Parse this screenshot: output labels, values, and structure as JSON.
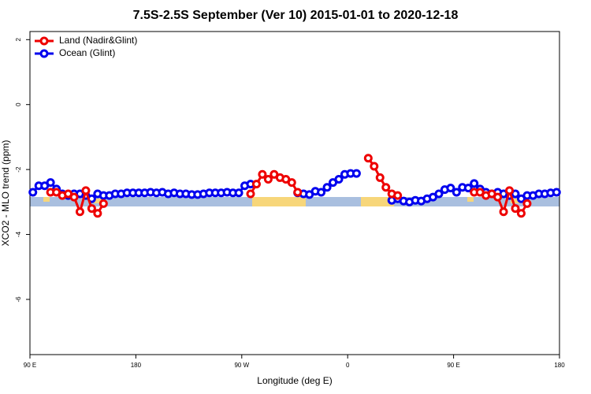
{
  "chart_data": {
    "type": "line",
    "title": "7.5S-2.5S September (Ver 10)   2015-01-01 to 2020-12-18",
    "x_label": "Longitude (deg E)",
    "y_label": "XCO2 - MLO trend (ppm)",
    "xlim": [
      90,
      540
    ],
    "ylim": [
      -7.7,
      2.25
    ],
    "xticks": [
      {
        "value": 90,
        "label": "90 E"
      },
      {
        "value": 180,
        "label": "180"
      },
      {
        "value": 270,
        "label": "90 W"
      },
      {
        "value": 360,
        "label": "0"
      },
      {
        "value": 450,
        "label": "90 E"
      },
      {
        "value": 540,
        "label": "180"
      }
    ],
    "yticks": [
      -6,
      -4,
      -2,
      0,
      2
    ],
    "legend": "top-left",
    "x": [
      92.5,
      97.5,
      102.5,
      107.5,
      112.5,
      117.5,
      122.5,
      127.5,
      132.5,
      137.5,
      142.5,
      147.5,
      152.5,
      157.5,
      162.5,
      167.5,
      172.5,
      177.5,
      182.5,
      187.5,
      192.5,
      197.5,
      202.5,
      207.5,
      212.5,
      217.5,
      222.5,
      227.5,
      232.5,
      237.5,
      242.5,
      247.5,
      252.5,
      257.5,
      262.5,
      267.5,
      272.5,
      277.5,
      282.5,
      287.5,
      292.5,
      297.5,
      302.5,
      307.5,
      312.5,
      317.5,
      322.5,
      327.5,
      332.5,
      337.5,
      342.5,
      347.5,
      352.5,
      357.5,
      362.5,
      367.5,
      372.5,
      377.5,
      382.5,
      387.5,
      392.5,
      397.5,
      402.5,
      407.5,
      412.5,
      417.5,
      422.5,
      427.5,
      432.5,
      437.5,
      442.5,
      447.5,
      452.5,
      457.5,
      462.5,
      467.5,
      472.5,
      477.5,
      482.5,
      487.5,
      492.5,
      497.5,
      502.5,
      507.5,
      512.5,
      517.5,
      522.5,
      527.5,
      532.5,
      537.5
    ],
    "series": [
      {
        "name": "Land (Nadir&Glint)",
        "color": "#ee0000",
        "values": [
          null,
          null,
          null,
          -2.7,
          -2.7,
          -2.8,
          -2.75,
          -2.85,
          -3.3,
          -2.65,
          -3.2,
          -3.35,
          -3.05,
          null,
          null,
          null,
          null,
          null,
          null,
          null,
          null,
          null,
          null,
          null,
          null,
          null,
          null,
          null,
          null,
          null,
          null,
          null,
          null,
          null,
          null,
          null,
          null,
          -2.75,
          -2.45,
          -2.15,
          -2.3,
          -2.15,
          -2.25,
          -2.3,
          -2.4,
          -2.7,
          null,
          null,
          null,
          null,
          null,
          null,
          null,
          null,
          null,
          null,
          null,
          -1.65,
          -1.9,
          -2.25,
          -2.55,
          -2.75,
          -2.8,
          null,
          null,
          null,
          null,
          null,
          null,
          null,
          null,
          null,
          null,
          null,
          null,
          -2.7,
          -2.7,
          -2.8,
          -2.75,
          -2.85,
          -3.3,
          -2.65,
          -3.2,
          -3.35,
          -3.05,
          null,
          null,
          null,
          null,
          null
        ]
      },
      {
        "name": "Ocean (Glint)",
        "color": "#0000ee",
        "values": [
          -2.7,
          -2.5,
          -2.5,
          -2.4,
          -2.6,
          -2.75,
          -2.8,
          -2.75,
          -2.75,
          -2.8,
          -2.9,
          -2.75,
          -2.8,
          -2.8,
          -2.75,
          -2.75,
          -2.72,
          -2.72,
          -2.72,
          -2.72,
          -2.7,
          -2.72,
          -2.7,
          -2.75,
          -2.72,
          -2.75,
          -2.75,
          -2.77,
          -2.77,
          -2.75,
          -2.72,
          -2.72,
          -2.72,
          -2.7,
          -2.72,
          -2.72,
          -2.5,
          -2.45,
          null,
          null,
          null,
          null,
          null,
          null,
          null,
          -2.72,
          -2.75,
          -2.77,
          -2.67,
          -2.7,
          -2.55,
          -2.4,
          -2.3,
          -2.15,
          -2.12,
          -2.12,
          null,
          null,
          null,
          null,
          null,
          -2.95,
          -2.9,
          -2.97,
          -3.0,
          -2.95,
          -2.97,
          -2.9,
          -2.85,
          -2.75,
          -2.62,
          -2.57,
          -2.7,
          -2.55,
          -2.57,
          -2.43,
          -2.6,
          -2.7,
          -2.75,
          -2.7,
          -2.75,
          -2.8,
          -2.75,
          -2.9,
          -2.8,
          -2.8,
          -2.75,
          -2.75,
          -2.72,
          -2.7
        ]
      }
    ]
  }
}
